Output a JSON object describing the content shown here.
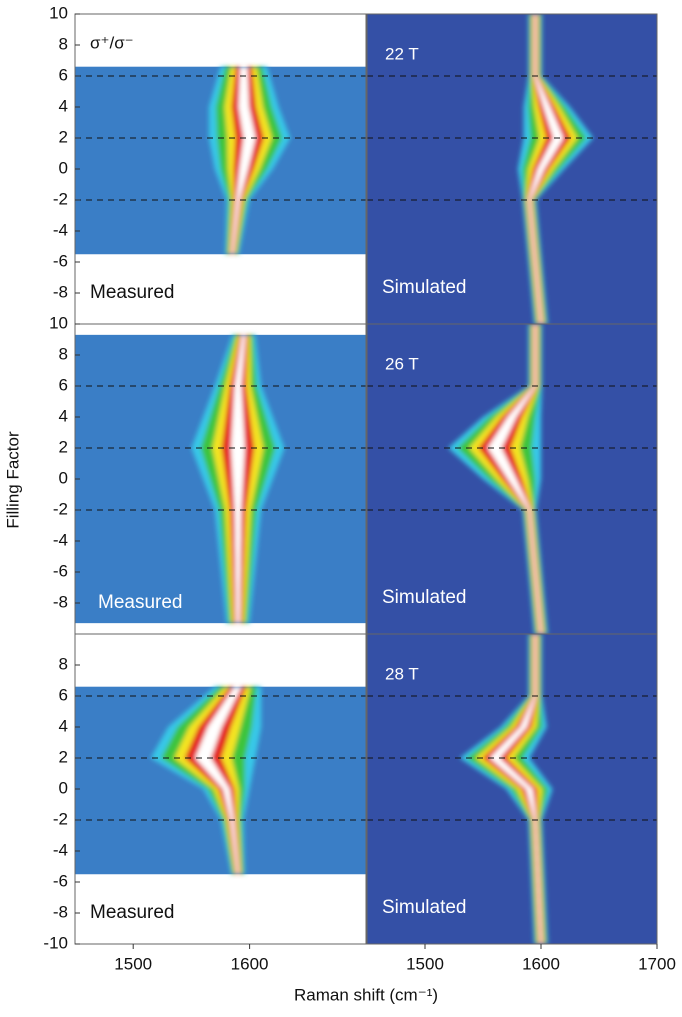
{
  "axis_labels": {
    "ylabel": "Filling Factor",
    "xlabel": "Raman shift (cm⁻¹)"
  },
  "colormap": [
    "#38c8e8",
    "#3cc43c",
    "#f4e424",
    "#e42222",
    "#ffffff"
  ],
  "chart_data": [
    {
      "type": "heatmap",
      "title": "σ⁺/σ⁻",
      "label": "Measured",
      "color": "#3a7ec6",
      "xlim": [
        1450,
        1700
      ],
      "ylim": [
        -10,
        10
      ],
      "yticks": [
        10,
        8,
        6,
        4,
        2,
        0,
        -2,
        -4,
        -6,
        -8
      ],
      "data_range": [
        -5.5,
        6.6
      ],
      "dashed_lines": [
        6,
        2,
        -2
      ],
      "y": [
        6.6,
        4,
        2,
        0,
        -2,
        -5.5
      ],
      "center": [
        1595,
        1595,
        1600,
        1595,
        1590,
        1585
      ],
      "width": [
        40,
        60,
        70,
        50,
        20,
        12
      ]
    },
    {
      "type": "heatmap",
      "title": "22 T",
      "label": "Simulated",
      "color": "#3450a6",
      "xlim": [
        1450,
        1700
      ],
      "ylim": [
        -10,
        10
      ],
      "data_range": [
        -10,
        10
      ],
      "dashed_lines": [
        6,
        2,
        -2
      ],
      "y": [
        10,
        6,
        4,
        2,
        0,
        -2,
        -10
      ],
      "center": [
        1595,
        1595,
        1605,
        1615,
        1600,
        1590,
        1600
      ],
      "width": [
        12,
        12,
        40,
        60,
        40,
        12,
        12
      ]
    },
    {
      "type": "heatmap",
      "label": "Measured",
      "color": "#3a7ec6",
      "xlim": [
        1450,
        1700
      ],
      "ylim": [
        -10,
        10
      ],
      "yticks": [
        10,
        8,
        6,
        4,
        2,
        0,
        -2,
        -4,
        -6,
        -8
      ],
      "data_range": [
        -9.3,
        9.3
      ],
      "dashed_lines": [
        6,
        2,
        -2
      ],
      "y": [
        9.3,
        6,
        2,
        -2,
        -9.3
      ],
      "center": [
        1595,
        1590,
        1590,
        1590,
        1590
      ],
      "width": [
        20,
        40,
        80,
        40,
        20
      ]
    },
    {
      "type": "heatmap",
      "title": "26 T",
      "label": "Simulated",
      "color": "#3450a6",
      "xlim": [
        1450,
        1700
      ],
      "ylim": [
        -10,
        10
      ],
      "data_range": [
        -10,
        10
      ],
      "dashed_lines": [
        6,
        2,
        -2
      ],
      "y": [
        10,
        6,
        4,
        2,
        0,
        -2,
        -10
      ],
      "center": [
        1595,
        1595,
        1575,
        1560,
        1575,
        1590,
        1600
      ],
      "width": [
        12,
        12,
        50,
        80,
        50,
        12,
        12
      ]
    },
    {
      "type": "heatmap",
      "label": "Measured",
      "color": "#3a7ec6",
      "xlim": [
        1450,
        1700
      ],
      "ylim": [
        -10,
        10
      ],
      "yticks": [
        8,
        6,
        4,
        2,
        0,
        -2,
        -4,
        -6,
        -8,
        -10
      ],
      "xticks": [
        1500,
        1600
      ],
      "data_range": [
        -5.5,
        6.6
      ],
      "dashed_lines": [
        6,
        2,
        -2
      ],
      "y": [
        6.6,
        4,
        2,
        0,
        -2,
        -5.5
      ],
      "center": [
        1590,
        1570,
        1560,
        1580,
        1585,
        1590
      ],
      "width": [
        40,
        80,
        90,
        40,
        20,
        12
      ]
    },
    {
      "type": "heatmap",
      "title": "28 T",
      "label": "Simulated",
      "color": "#3450a6",
      "xlim": [
        1450,
        1700
      ],
      "ylim": [
        -10,
        10
      ],
      "xticks": [
        1500,
        1600,
        1700
      ],
      "data_range": [
        -10,
        10
      ],
      "dashed_lines": [
        6,
        2,
        -2
      ],
      "y": [
        10,
        6,
        4,
        2,
        0,
        -2,
        -10
      ],
      "center": [
        1595,
        1595,
        1585,
        1560,
        1590,
        1595,
        1600
      ],
      "width": [
        12,
        12,
        40,
        60,
        40,
        12,
        12
      ]
    }
  ]
}
